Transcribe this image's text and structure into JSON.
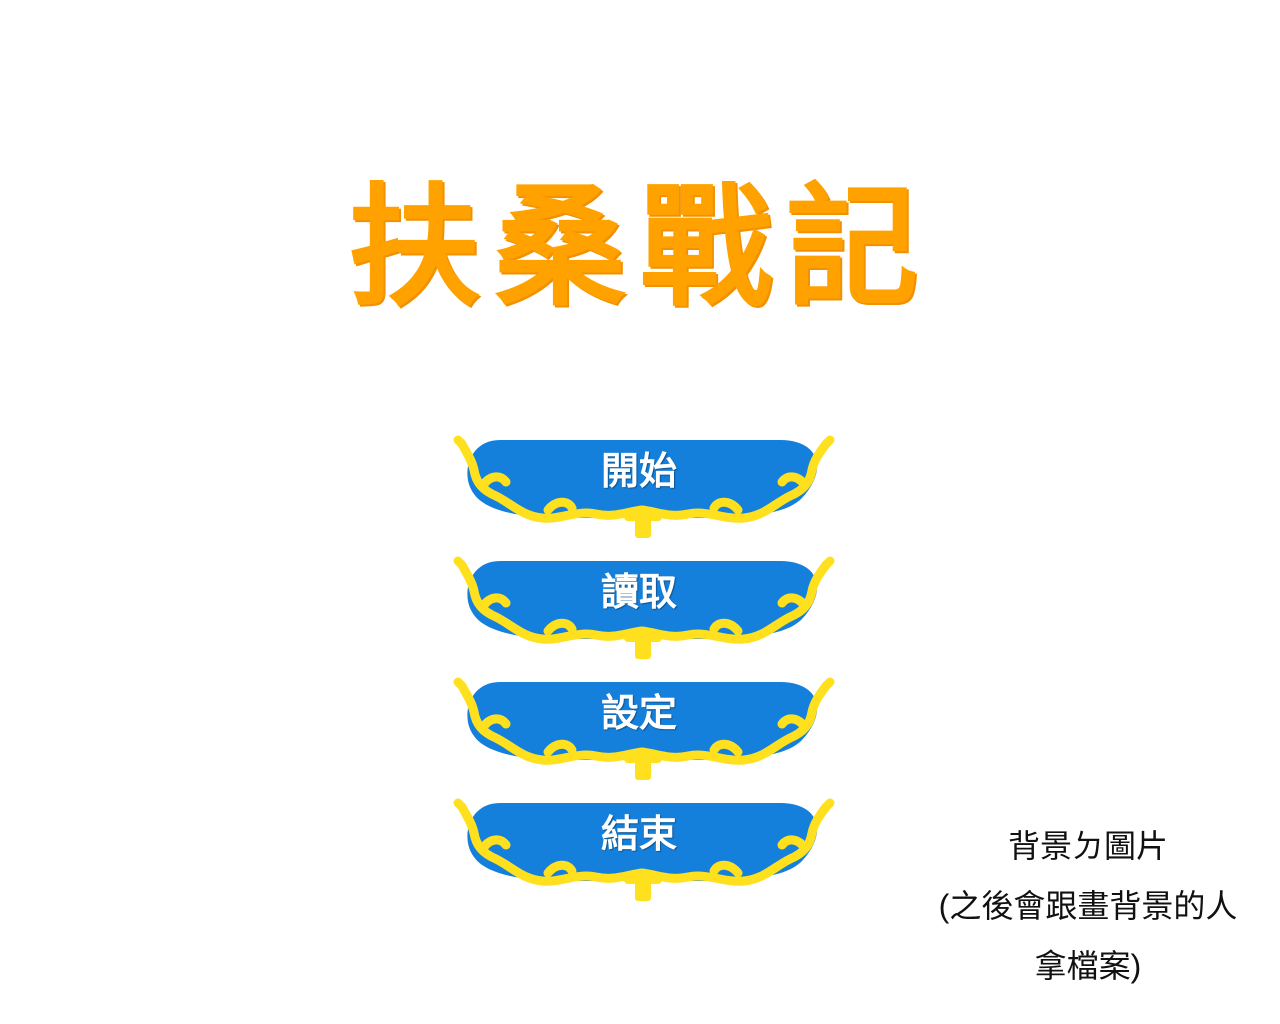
{
  "title": "扶桑戰記",
  "menu": {
    "items": [
      {
        "key": "start",
        "label": "開始"
      },
      {
        "key": "load",
        "label": "讀取"
      },
      {
        "key": "settings",
        "label": "設定"
      },
      {
        "key": "exit",
        "label": "結束"
      }
    ]
  },
  "note": {
    "line1": "背景ㄉ圖片",
    "line2": "(之後會跟畫背景的人",
    "line3": "拿檔案)"
  },
  "colors": {
    "title": "#ffa200",
    "button_fill": "#1480dc",
    "button_frame": "#ffe01f",
    "label": "#ffffff",
    "background": "#ffffff"
  }
}
